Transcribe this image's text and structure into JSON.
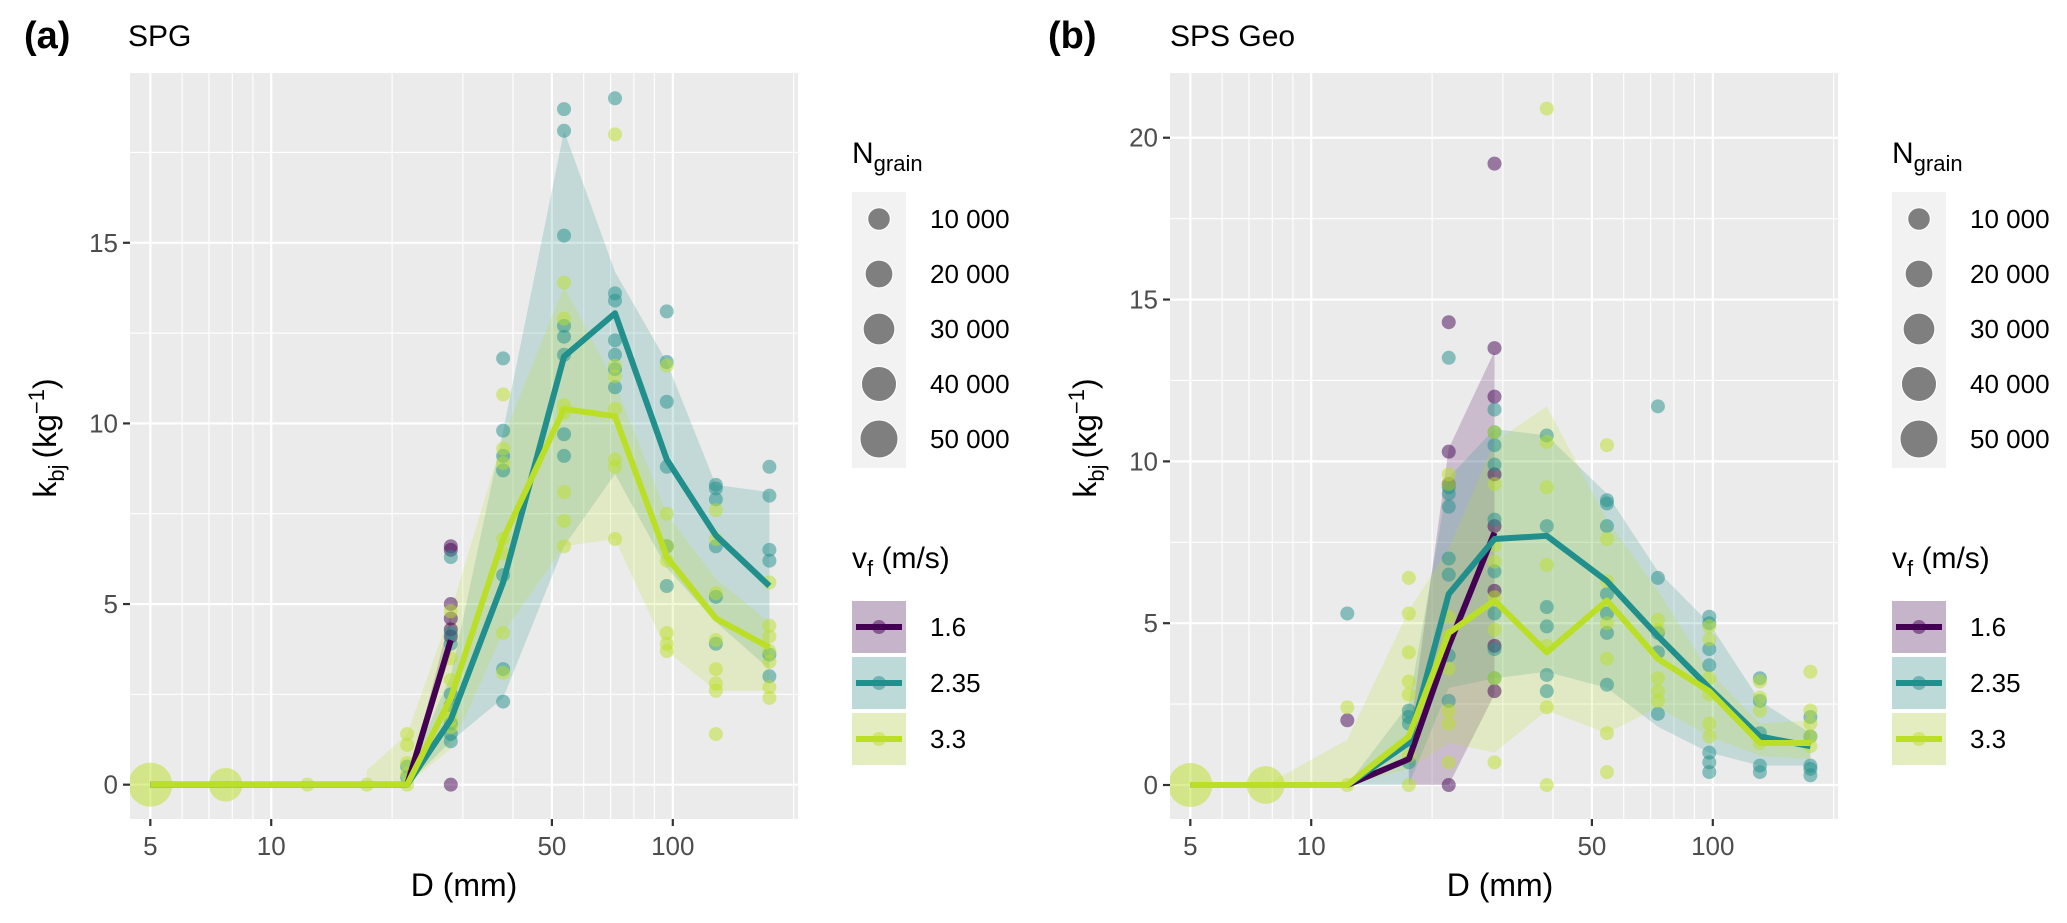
{
  "chart_data": [
    {
      "type": "scatter",
      "panel_tag": "(a)",
      "title": "SPG",
      "xlabel": "D (mm)",
      "ylabel": "k_bj (kg^-1)",
      "ylabel_parts": {
        "main": "k",
        "sub": "bj",
        "unit": "(kg",
        "sup": "−1",
        "close": ")"
      },
      "x_scale": "log10",
      "xlim": [
        4.45,
        205
      ],
      "ylim": [
        -0.95,
        19.7
      ],
      "x_ticks": [
        5,
        10,
        50,
        100
      ],
      "x_tick_labels": [
        "5",
        "10",
        "50",
        "100"
      ],
      "y_ticks": [
        0,
        5,
        10,
        15
      ],
      "y_tick_labels": [
        "0",
        "5",
        "10",
        "15"
      ],
      "x_minor_grid": [
        6,
        7,
        8,
        9,
        20,
        30,
        40,
        60,
        70,
        80,
        90,
        200
      ],
      "y_minor_grid": [
        2.5,
        7.5,
        12.5,
        17.5
      ],
      "grid": true,
      "series": [
        {
          "name": "1.6",
          "color": "#440154",
          "line": {
            "x": [
              5,
              7.7,
              12.3,
              17.3,
              21.8,
              28
            ],
            "y": [
              0,
              0,
              0,
              0,
              0,
              4.0
            ]
          },
          "ribbon": {
            "x": [
              21.8,
              28
            ],
            "lower": [
              0,
              3.6
            ],
            "upper": [
              0,
              4.7
            ]
          },
          "points": [
            {
              "x": 28,
              "y": [
                6.6,
                6.5,
                5.0,
                4.6,
                4.3,
                4.1,
                0
              ]
            }
          ]
        },
        {
          "name": "2.35",
          "color": "#21908C",
          "line": {
            "x": [
              5,
              7.7,
              12.3,
              17.3,
              21.8,
              28,
              37.8,
              53.6,
              71.8,
              96.6,
              128,
              174
            ],
            "y": [
              0,
              0,
              0,
              0,
              0,
              1.8,
              5.6,
              11.85,
              13.05,
              9.0,
              6.9,
              5.5
            ]
          },
          "ribbon": {
            "x": [
              21.8,
              28,
              37.8,
              53.6,
              71.8,
              96.6,
              128,
              174
            ],
            "lower": [
              0,
              1.2,
              2.4,
              6.6,
              8.6,
              6.0,
              4.5,
              3.2
            ],
            "upper": [
              0.3,
              3.0,
              9.8,
              18.1,
              14.2,
              11.7,
              8.3,
              8.1
            ]
          },
          "points": [
            {
              "x": 21.8,
              "y": [
                0.5,
                0.2
              ]
            },
            {
              "x": 28,
              "y": [
                6.3,
                4.2,
                3.9,
                2.5,
                2.2,
                1.7,
                1.4,
                1.2
              ]
            },
            {
              "x": 37.8,
              "y": [
                11.8,
                9.8,
                9.1,
                8.7,
                5.8,
                3.2,
                2.3
              ]
            },
            {
              "x": 53.6,
              "y": [
                18.7,
                18.1,
                15.2,
                12.7,
                12.4,
                11.9,
                9.7,
                9.1
              ]
            },
            {
              "x": 71.8,
              "y": [
                19.0,
                13.6,
                13.4,
                12.3,
                11.9,
                11.5,
                11.0
              ]
            },
            {
              "x": 96.6,
              "y": [
                13.1,
                11.7,
                10.6,
                8.8,
                6.6,
                5.5
              ]
            },
            {
              "x": 128,
              "y": [
                8.3,
                8.2,
                7.9,
                6.6,
                5.2,
                3.9
              ]
            },
            {
              "x": 174,
              "y": [
                8.8,
                8.0,
                6.5,
                6.2,
                3.6,
                3.0
              ]
            }
          ]
        },
        {
          "name": "3.3",
          "color": "#BBDF27",
          "line": {
            "x": [
              5,
              7.7,
              12.3,
              17.3,
              21.8,
              28,
              37.8,
              53.6,
              71.8,
              96.6,
              128,
              174
            ],
            "y": [
              0,
              0,
              0,
              0,
              0,
              2.4,
              6.8,
              10.4,
              10.2,
              6.3,
              4.6,
              3.8
            ]
          },
          "ribbon": {
            "x": [
              17.3,
              21.8,
              28,
              37.8,
              53.6,
              71.8,
              96.6,
              128,
              174
            ],
            "lower": [
              0,
              0,
              1.0,
              4.2,
              6.6,
              6.8,
              3.7,
              2.6,
              2.6
            ],
            "upper": [
              0.4,
              1.4,
              4.8,
              9.6,
              13.8,
              11.1,
              7.5,
              5.7,
              4.5
            ]
          },
          "points": [
            {
              "x": 5,
              "y": [
                0
              ],
              "n_grain": 50000
            },
            {
              "x": 7.7,
              "y": [
                0
              ],
              "n_grain": 20000
            },
            {
              "x": 12.3,
              "y": [
                0
              ]
            },
            {
              "x": 17.3,
              "y": [
                0
              ]
            },
            {
              "x": 21.8,
              "y": [
                1.4,
                1.1,
                0.6,
                0.3,
                0
              ]
            },
            {
              "x": 28,
              "y": [
                4.8,
                3.5,
                2.9,
                2.0,
                1.8,
                1.6
              ]
            },
            {
              "x": 37.8,
              "y": [
                10.8,
                9.3,
                8.9,
                6.8,
                6.4,
                4.2,
                3.1
              ]
            },
            {
              "x": 53.6,
              "y": [
                13.9,
                12.9,
                10.5,
                10.3,
                8.1,
                7.3,
                6.6
              ]
            },
            {
              "x": 71.8,
              "y": [
                18.0,
                11.6,
                11.3,
                10.4,
                9.0,
                8.8,
                6.8
              ]
            },
            {
              "x": 96.6,
              "y": [
                11.6,
                7.5,
                6.6,
                6.2,
                4.2,
                3.9,
                3.7
              ]
            },
            {
              "x": 128,
              "y": [
                7.6,
                6.8,
                5.3,
                4.0,
                3.2,
                2.8,
                2.6,
                1.4
              ]
            },
            {
              "x": 174,
              "y": [
                5.6,
                4.4,
                4.1,
                3.7,
                3.4,
                2.7,
                2.4
              ]
            }
          ]
        }
      ],
      "legends": [
        {
          "title": "N_grain",
          "title_main": "N",
          "title_sub": "grain",
          "type": "size",
          "entries": [
            "10 000",
            "20 000",
            "30 000",
            "40 000",
            "50 000"
          ],
          "values": [
            10000,
            20000,
            30000,
            40000,
            50000
          ]
        },
        {
          "title": "v_f (m/s)",
          "title_main": "v",
          "title_sub": "f",
          "title_rest": " (m/s)",
          "type": "color",
          "entries": [
            "1.6",
            "2.35",
            "3.3"
          ]
        }
      ],
      "legend_position": "right"
    },
    {
      "type": "scatter",
      "panel_tag": "(b)",
      "title": "SPS Geo",
      "xlabel": "D (mm)",
      "ylabel": "k_bj (kg^-1)",
      "ylabel_parts": {
        "main": "k",
        "sub": "bj",
        "unit": "(kg",
        "sup": "−1",
        "close": ")"
      },
      "x_scale": "log10",
      "xlim": [
        4.45,
        205
      ],
      "ylim": [
        -1.05,
        22.0
      ],
      "x_ticks": [
        5,
        10,
        50,
        100
      ],
      "x_tick_labels": [
        "5",
        "10",
        "50",
        "100"
      ],
      "y_ticks": [
        0,
        5,
        10,
        15,
        20
      ],
      "y_tick_labels": [
        "0",
        "5",
        "10",
        "15",
        "20"
      ],
      "x_minor_grid": [
        6,
        7,
        8,
        9,
        20,
        30,
        40,
        60,
        70,
        80,
        90,
        200
      ],
      "y_minor_grid": [
        2.5,
        7.5,
        12.5,
        17.5
      ],
      "grid": true,
      "series": [
        {
          "name": "1.6",
          "color": "#440154",
          "line": {
            "x": [
              12.3,
              17.5,
              22,
              28.6
            ],
            "y": [
              0,
              0.8,
              4.3,
              7.8
            ]
          },
          "ribbon": {
            "x": [
              17.5,
              22,
              28.6
            ],
            "lower": [
              0,
              0,
              2.8
            ],
            "upper": [
              1.4,
              10.4,
              13.4
            ]
          },
          "points": [
            {
              "x": 12.3,
              "y": [
                2.0
              ]
            },
            {
              "x": 22,
              "y": [
                14.3,
                10.3,
                9.3,
                0
              ]
            },
            {
              "x": 28.6,
              "y": [
                19.2,
                13.5,
                12.0,
                9.6,
                8.0,
                6.0,
                4.3,
                2.9
              ]
            }
          ]
        },
        {
          "name": "2.35",
          "color": "#21908C",
          "line": {
            "x": [
              5,
              7.7,
              12.3,
              17.5,
              22,
              28.6,
              38.6,
              54.5,
              73,
              98,
              131,
              175
            ],
            "y": [
              0,
              0,
              0,
              1.3,
              5.9,
              7.6,
              7.7,
              6.3,
              4.6,
              3.0,
              1.5,
              1.2
            ]
          },
          "ribbon": {
            "x": [
              12.3,
              17.5,
              22,
              28.6,
              38.6,
              54.5,
              73,
              98,
              131,
              175
            ],
            "lower": [
              0,
              0,
              3.0,
              3.3,
              3.5,
              3.0,
              1.8,
              1.0,
              0.6,
              0.6
            ],
            "upper": [
              0,
              2.5,
              9.5,
              11.0,
              10.8,
              9.0,
              6.6,
              5.0,
              2.6,
              1.6
            ]
          },
          "points": [
            {
              "x": 12.3,
              "y": [
                5.3
              ]
            },
            {
              "x": 17.5,
              "y": [
                2.3,
                2.1,
                1.9,
                0.7
              ]
            },
            {
              "x": 22,
              "y": [
                13.2,
                9.2,
                9.0,
                8.6,
                7.0,
                6.5,
                4.0,
                2.6
              ]
            },
            {
              "x": 28.6,
              "y": [
                11.6,
                10.9,
                10.5,
                9.9,
                8.2,
                6.6,
                5.3,
                4.2,
                3.3
              ]
            },
            {
              "x": 38.6,
              "y": [
                10.8,
                8.0,
                5.5,
                4.9,
                3.4,
                2.9
              ]
            },
            {
              "x": 54.5,
              "y": [
                8.8,
                8.7,
                8.0,
                5.9,
                5.3,
                4.7,
                3.1
              ]
            },
            {
              "x": 73,
              "y": [
                11.7,
                6.4,
                4.7,
                4.1,
                2.2
              ]
            },
            {
              "x": 98,
              "y": [
                5.2,
                5.0,
                4.2,
                3.7,
                1.0,
                0.7,
                0.4
              ]
            },
            {
              "x": 131,
              "y": [
                3.3,
                2.6,
                1.6,
                0.6,
                0.4
              ]
            },
            {
              "x": 175,
              "y": [
                2.1,
                1.5,
                0.6,
                0.5,
                0.3
              ]
            }
          ]
        },
        {
          "name": "3.3",
          "color": "#BBDF27",
          "line": {
            "x": [
              5,
              7.7,
              12.3,
              17.5,
              22,
              28.6,
              38.6,
              54.5,
              73,
              98,
              131,
              175
            ],
            "y": [
              0,
              0,
              0,
              1.5,
              4.7,
              5.7,
              4.1,
              5.7,
              3.9,
              2.9,
              1.3,
              1.3
            ]
          },
          "ribbon": {
            "x": [
              7.7,
              12.3,
              17.5,
              22,
              28.6,
              38.6,
              54.5,
              73,
              98,
              131,
              175
            ],
            "lower": [
              0,
              0,
              0.5,
              1.3,
              1.0,
              2.3,
              1.6,
              2.4,
              1.5,
              0.9,
              0.8
            ],
            "upper": [
              0,
              1.4,
              5.4,
              7.3,
              10.6,
              11.7,
              8.2,
              6.0,
              3.5,
              1.9,
              2.0
            ]
          },
          "points": [
            {
              "x": 5,
              "y": [
                0
              ],
              "n_grain": 50000
            },
            {
              "x": 7.7,
              "y": [
                0
              ],
              "n_grain": 30000
            },
            {
              "x": 12.3,
              "y": [
                2.4,
                0
              ]
            },
            {
              "x": 17.5,
              "y": [
                6.4,
                5.3,
                4.1,
                3.2,
                2.8,
                0.9,
                0
              ]
            },
            {
              "x": 22,
              "y": [
                9.6,
                9.3,
                5.2,
                4.6,
                3.6,
                2.3,
                1.9,
                0.7
              ]
            },
            {
              "x": 28.6,
              "y": [
                10.9,
                9.3,
                7.4,
                6.9,
                5.8,
                4.8,
                3.3,
                0.7
              ]
            },
            {
              "x": 38.6,
              "y": [
                20.9,
                10.6,
                9.2,
                6.8,
                4.3,
                2.4,
                0
              ]
            },
            {
              "x": 54.5,
              "y": [
                10.5,
                7.6,
                6.3,
                5.0,
                3.9,
                1.6,
                0.4
              ]
            },
            {
              "x": 73,
              "y": [
                5.1,
                4.8,
                3.3,
                2.9,
                2.6
              ]
            },
            {
              "x": 98,
              "y": [
                4.9,
                4.5,
                3.3,
                2.8,
                1.9,
                1.5
              ]
            },
            {
              "x": 131,
              "y": [
                3.2,
                2.7,
                2.3,
                1.3
              ]
            },
            {
              "x": 175,
              "y": [
                3.5,
                2.3,
                1.9,
                1.5,
                1.2
              ]
            }
          ]
        }
      ],
      "legends": [
        {
          "title": "N_grain",
          "title_main": "N",
          "title_sub": "grain",
          "type": "size",
          "entries": [
            "10 000",
            "20 000",
            "30 000",
            "40 000",
            "50 000"
          ],
          "values": [
            10000,
            20000,
            30000,
            40000,
            50000
          ]
        },
        {
          "title": "v_f (m/s)",
          "title_main": "v",
          "title_sub": "f",
          "title_rest": " (m/s)",
          "type": "color",
          "entries": [
            "1.6",
            "2.35",
            "3.3"
          ]
        }
      ],
      "legend_position": "right"
    }
  ]
}
